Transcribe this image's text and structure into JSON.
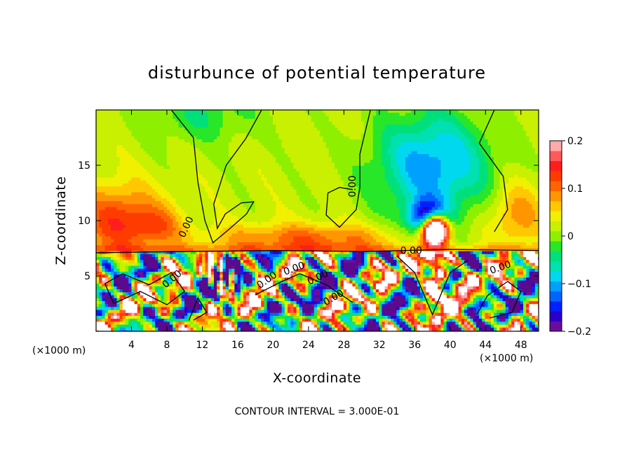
{
  "chart_data": {
    "type": "heatmap",
    "title": "disturbunce of potential temperature",
    "xlabel": "X-coordinate",
    "ylabel": "Z-coordinate",
    "x_unit": "(×1000 m)",
    "y_unit": "(×1000 m)",
    "xlim": [
      0,
      50
    ],
    "ylim": [
      0,
      20
    ],
    "xticks": [
      4,
      8,
      12,
      16,
      20,
      24,
      28,
      32,
      36,
      40,
      44,
      48
    ],
    "yticks": [
      5,
      10,
      15
    ],
    "colorbar": {
      "range": [
        -0.2,
        0.2
      ],
      "ticks": [
        0.2,
        0.1,
        0,
        -0.1,
        -0.2
      ],
      "tick_labels": [
        "0.2",
        "0.1",
        "0",
        "−0.1",
        "−0.2"
      ],
      "colors": [
        "#6a0d9e",
        "#2a00c8",
        "#0020ff",
        "#0064ff",
        "#00a0ff",
        "#00d8f0",
        "#00e0b0",
        "#00e07a",
        "#28e628",
        "#8ef000",
        "#c8f000",
        "#f0f000",
        "#ffc800",
        "#ff9600",
        "#ff6400",
        "#ff3c00",
        "#ff1e1e",
        "#ff5a5a",
        "#ffaaaa"
      ]
    },
    "contour_labels": [
      {
        "text": "0.00",
        "x": 10.5,
        "z": 9.3,
        "angle": -65
      },
      {
        "text": "0.00",
        "x": 29.3,
        "z": 13.1,
        "angle": -90
      },
      {
        "text": "0.00",
        "x": 35.6,
        "z": 7.0,
        "angle": 0
      },
      {
        "text": "0.00",
        "x": 8.8,
        "z": 4.5,
        "angle": -40
      },
      {
        "text": "0.00",
        "x": 19.5,
        "z": 4.4,
        "angle": -35
      },
      {
        "text": "0.00",
        "x": 22.5,
        "z": 5.4,
        "angle": -20
      },
      {
        "text": "0.00",
        "x": 25.2,
        "z": 4.6,
        "angle": -25
      },
      {
        "text": "0.00",
        "x": 27.0,
        "z": 2.8,
        "angle": -30
      },
      {
        "text": "0.00",
        "x": 45.8,
        "z": 5.5,
        "angle": -20
      }
    ],
    "footer": "CONTOUR INTERVAL = 3.000E-01",
    "grid": false
  }
}
